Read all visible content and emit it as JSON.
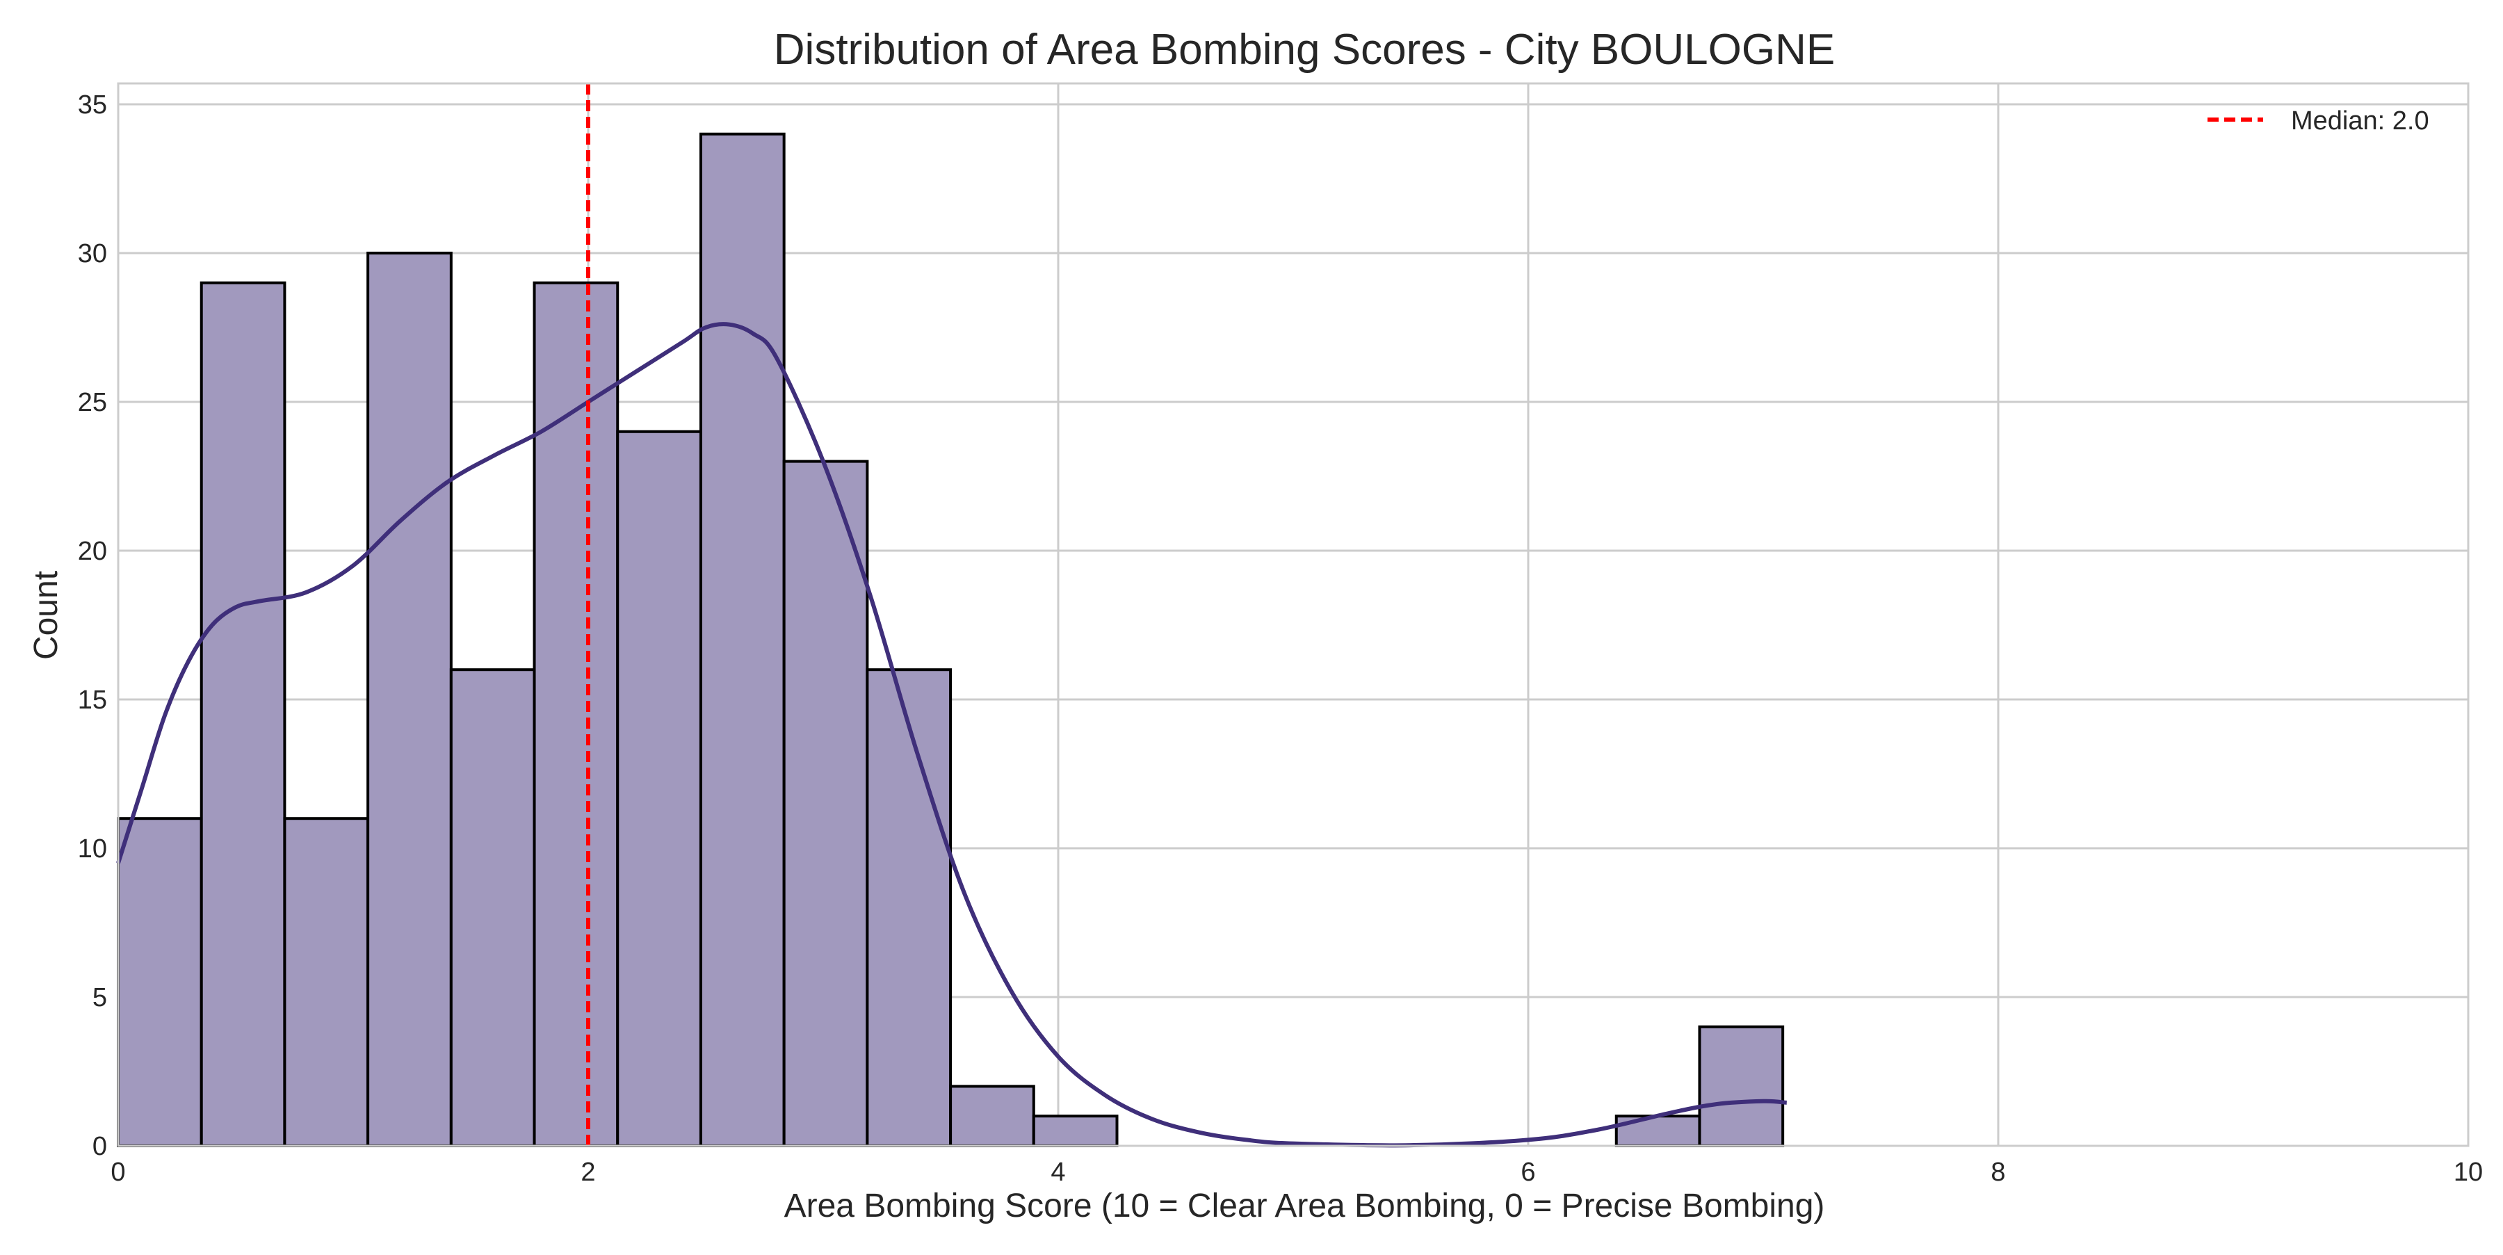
{
  "chart_data": {
    "type": "bar",
    "subtype": "histogram-with-kde",
    "title": "Distribution of Area Bombing Scores - City BOULOGNE",
    "xlabel": "Area Bombing Score (10 = Clear Area Bombing, 0 = Precise Bombing)",
    "ylabel": "Count",
    "xlim": [
      0,
      10
    ],
    "ylim": [
      0,
      35.7
    ],
    "x_ticks": [
      0,
      2,
      4,
      6,
      8,
      10
    ],
    "y_ticks": [
      0,
      5,
      10,
      15,
      20,
      25,
      30,
      35
    ],
    "grid": true,
    "legend_position": "top-right",
    "colors": {
      "bar_fill": "#a199be",
      "bar_edge": "#000000",
      "kde_line": "#3f2f7a",
      "median_line": "#ff0000",
      "grid": "#cccccc",
      "spine": "#cccccc"
    },
    "bins": [
      {
        "x0": 0.0,
        "x1": 0.3542,
        "count": 11
      },
      {
        "x0": 0.3542,
        "x1": 0.7083,
        "count": 29
      },
      {
        "x0": 0.7083,
        "x1": 1.0625,
        "count": 11
      },
      {
        "x0": 1.0625,
        "x1": 1.4167,
        "count": 30
      },
      {
        "x0": 1.4167,
        "x1": 1.7708,
        "count": 16
      },
      {
        "x0": 1.7708,
        "x1": 2.125,
        "count": 29
      },
      {
        "x0": 2.125,
        "x1": 2.4792,
        "count": 24
      },
      {
        "x0": 2.4792,
        "x1": 2.8333,
        "count": 34
      },
      {
        "x0": 2.8333,
        "x1": 3.1875,
        "count": 23
      },
      {
        "x0": 3.1875,
        "x1": 3.5417,
        "count": 16
      },
      {
        "x0": 3.5417,
        "x1": 3.8958,
        "count": 2
      },
      {
        "x0": 3.8958,
        "x1": 4.25,
        "count": 1
      },
      {
        "x0": 6.375,
        "x1": 6.7292,
        "count": 1
      },
      {
        "x0": 6.7292,
        "x1": 7.0833,
        "count": 4
      }
    ],
    "kde": {
      "x": [
        0.0,
        0.1,
        0.2,
        0.3,
        0.4,
        0.5,
        0.6,
        0.8,
        1.0,
        1.2,
        1.4,
        1.6,
        1.8,
        2.0,
        2.2,
        2.4,
        2.5,
        2.6,
        2.7,
        2.8,
        3.0,
        3.2,
        3.4,
        3.6,
        3.8,
        4.0,
        4.2,
        4.4,
        4.6,
        4.8,
        5.0,
        5.5,
        6.0,
        6.3,
        6.6,
        6.8,
        7.0,
        7.1
      ],
      "y": [
        9.5,
        12.0,
        14.5,
        16.3,
        17.5,
        18.1,
        18.3,
        18.6,
        19.5,
        21.0,
        22.3,
        23.2,
        24.0,
        25.0,
        26.0,
        27.0,
        27.5,
        27.6,
        27.3,
        26.5,
        23.0,
        18.5,
        13.2,
        8.5,
        5.2,
        3.0,
        1.7,
        0.9,
        0.45,
        0.2,
        0.08,
        0.02,
        0.2,
        0.55,
        1.1,
        1.4,
        1.5,
        1.45
      ]
    },
    "median": {
      "value": 2.0,
      "label": "Median: 2.0"
    }
  }
}
